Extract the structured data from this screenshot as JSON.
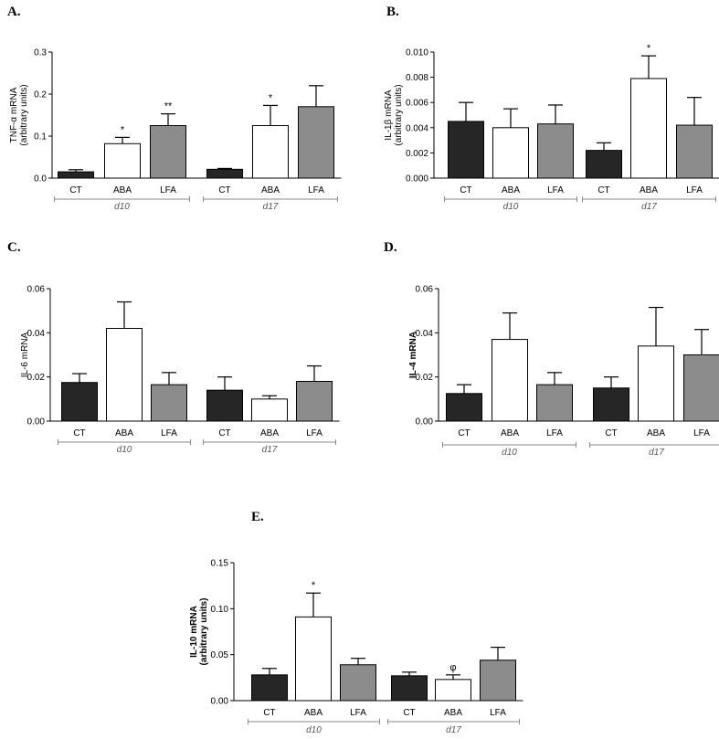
{
  "colors": {
    "CT": "#262626",
    "ABA": "#ffffff",
    "LFA": "#8c8c8c",
    "axis": "#000000",
    "group_line": "#888888"
  },
  "chart_data": [
    {
      "type": "bar",
      "panel_label": "A.",
      "ylabel": [
        "TNF-α mRNA",
        "(arbitrary units)"
      ],
      "ylabel_bold": false,
      "ylim": [
        0,
        0.3
      ],
      "yticks": [
        0,
        0.1,
        0.2,
        0.3
      ],
      "ytick_labels": [
        "0.0",
        "0.1",
        "0.2",
        "0.3"
      ],
      "categories": [
        "CT",
        "ABA",
        "LFA",
        "CT",
        "ABA",
        "LFA"
      ],
      "series": [
        "CT",
        "ABA",
        "LFA",
        "CT",
        "ABA",
        "LFA"
      ],
      "values": [
        0.015,
        0.082,
        0.125,
        0.021,
        0.125,
        0.17
      ],
      "errors": [
        0.005,
        0.015,
        0.028,
        0.002,
        0.048,
        0.05
      ],
      "annotations": [
        "",
        "*",
        "**",
        "",
        "*",
        ""
      ],
      "groups": [
        {
          "name": "d10",
          "start": 0,
          "end": 2
        },
        {
          "name": "d17",
          "start": 3,
          "end": 5
        }
      ]
    },
    {
      "type": "bar",
      "panel_label": "B.",
      "ylabel": [
        "IL-1β mRNA",
        "(arbitrary units)"
      ],
      "ylabel_bold": false,
      "ylim": [
        0,
        0.01
      ],
      "yticks": [
        0,
        0.002,
        0.004,
        0.006,
        0.008,
        0.01
      ],
      "ytick_labels": [
        "0.000",
        "0.002",
        "0.004",
        "0.006",
        "0.008",
        "0.010"
      ],
      "categories": [
        "CT",
        "ABA",
        "LFA",
        "CT",
        "ABA",
        "LFA"
      ],
      "series": [
        "CT",
        "ABA",
        "LFA",
        "CT",
        "ABA",
        "LFA"
      ],
      "values": [
        0.0045,
        0.004,
        0.0043,
        0.0022,
        0.0079,
        0.0042
      ],
      "errors": [
        0.0015,
        0.0015,
        0.0015,
        0.0006,
        0.0018,
        0.0022
      ],
      "annotations": [
        "",
        "",
        "",
        "",
        "*",
        ""
      ],
      "groups": [
        {
          "name": "d10",
          "start": 0,
          "end": 2
        },
        {
          "name": "d17",
          "start": 3,
          "end": 5
        }
      ]
    },
    {
      "type": "bar",
      "panel_label": "C.",
      "ylabel": [
        "IL-6 mRNA"
      ],
      "ylabel_bold": false,
      "ylim": [
        0,
        0.06
      ],
      "yticks": [
        0,
        0.02,
        0.04,
        0.06
      ],
      "ytick_labels": [
        "0.00",
        "0.02",
        "0.04",
        "0.06"
      ],
      "categories": [
        "CT",
        "ABA",
        "LFA",
        "CT",
        "ABA",
        "LFA"
      ],
      "series": [
        "CT",
        "ABA",
        "LFA",
        "CT",
        "ABA",
        "LFA"
      ],
      "values": [
        0.0175,
        0.042,
        0.0165,
        0.014,
        0.01,
        0.018
      ],
      "errors": [
        0.004,
        0.012,
        0.0055,
        0.006,
        0.0015,
        0.007
      ],
      "annotations": [
        "",
        "",
        "",
        "",
        "",
        ""
      ],
      "groups": [
        {
          "name": "d10",
          "start": 0,
          "end": 2
        },
        {
          "name": "d17",
          "start": 3,
          "end": 5
        }
      ]
    },
    {
      "type": "bar",
      "panel_label": "D.",
      "ylabel": [
        "IL-4 mRNA"
      ],
      "ylabel_bold": true,
      "ylim": [
        0,
        0.06
      ],
      "yticks": [
        0,
        0.02,
        0.04,
        0.06
      ],
      "ytick_labels": [
        "0.00",
        "0.02",
        "0.04",
        "0.06"
      ],
      "categories": [
        "CT",
        "ABA",
        "LFA",
        "CT",
        "ABA",
        "LFA"
      ],
      "series": [
        "CT",
        "ABA",
        "LFA",
        "CT",
        "ABA",
        "LFA"
      ],
      "values": [
        0.0125,
        0.037,
        0.0165,
        0.015,
        0.034,
        0.03
      ],
      "errors": [
        0.004,
        0.012,
        0.0055,
        0.005,
        0.0175,
        0.0115
      ],
      "annotations": [
        "",
        "",
        "",
        "",
        "",
        ""
      ],
      "groups": [
        {
          "name": "d10",
          "start": 0,
          "end": 2
        },
        {
          "name": "d17",
          "start": 3,
          "end": 5
        }
      ]
    },
    {
      "type": "bar",
      "panel_label": "E.",
      "ylabel": [
        "IL-10 mRNA",
        "(arbitrary units)"
      ],
      "ylabel_bold": true,
      "ylim": [
        0,
        0.15
      ],
      "yticks": [
        0,
        0.05,
        0.1,
        0.15
      ],
      "ytick_labels": [
        "0.00",
        "0.05",
        "0.10",
        "0.15"
      ],
      "categories": [
        "CT",
        "ABA",
        "LFA",
        "CT",
        "ABA",
        "LFA"
      ],
      "series": [
        "CT",
        "ABA",
        "LFA",
        "CT",
        "ABA",
        "LFA"
      ],
      "values": [
        0.028,
        0.091,
        0.039,
        0.027,
        0.023,
        0.044
      ],
      "errors": [
        0.007,
        0.026,
        0.007,
        0.004,
        0.005,
        0.014
      ],
      "annotations": [
        "",
        "*",
        "",
        "",
        "φ",
        ""
      ],
      "groups": [
        {
          "name": "d10",
          "start": 0,
          "end": 2
        },
        {
          "name": "d17",
          "start": 3,
          "end": 5
        }
      ]
    }
  ]
}
